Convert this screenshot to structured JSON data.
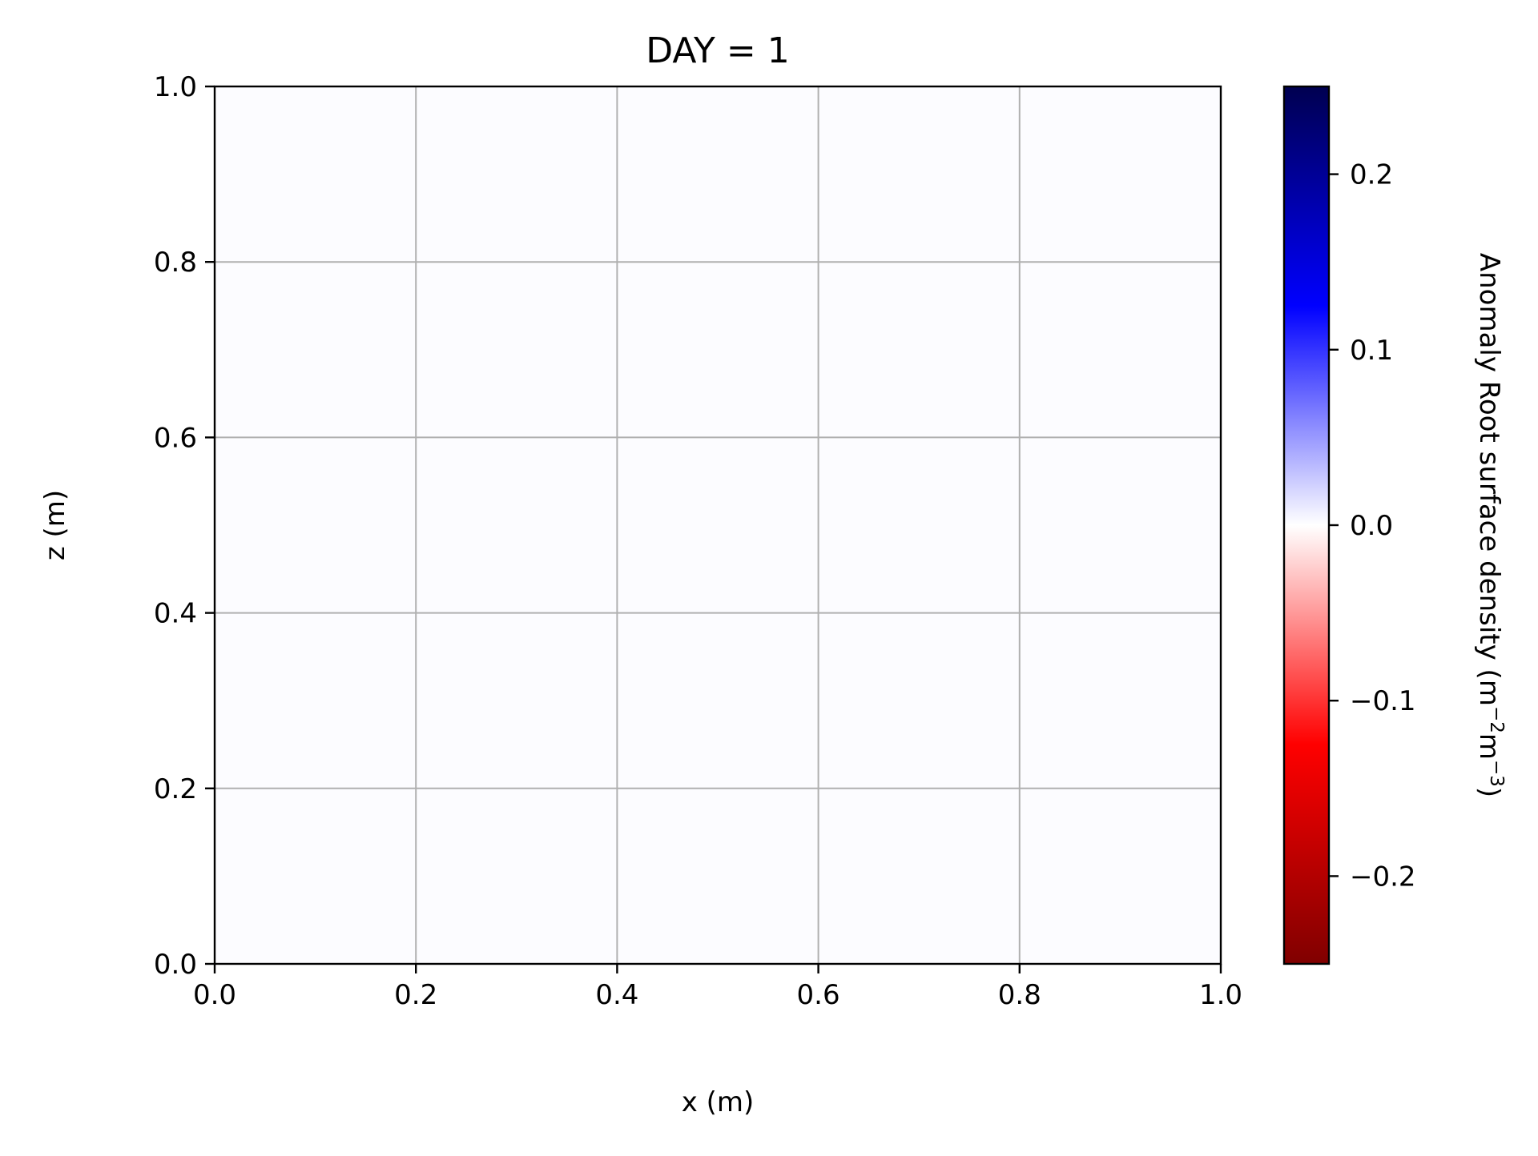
{
  "chart_data": {
    "type": "heatmap",
    "title": "DAY = 1",
    "xlabel": "x (m)",
    "ylabel": "z (m)",
    "xlim": [
      0.0,
      1.0
    ],
    "ylim": [
      0.0,
      1.0
    ],
    "x_ticks": [
      {
        "value": 0.0,
        "label": "0.0"
      },
      {
        "value": 0.2,
        "label": "0.2"
      },
      {
        "value": 0.4,
        "label": "0.4"
      },
      {
        "value": 0.6,
        "label": "0.6"
      },
      {
        "value": 0.8,
        "label": "0.8"
      },
      {
        "value": 1.0,
        "label": "1.0"
      }
    ],
    "y_ticks": [
      {
        "value": 0.0,
        "label": "0.0"
      },
      {
        "value": 0.2,
        "label": "0.2"
      },
      {
        "value": 0.4,
        "label": "0.4"
      },
      {
        "value": 0.6,
        "label": "0.6"
      },
      {
        "value": 0.8,
        "label": "0.8"
      },
      {
        "value": 1.0,
        "label": "1.0"
      }
    ],
    "grid": true,
    "field_value": 0.0,
    "field_color": "#fcfcff",
    "colorbar": {
      "label_main": "Anomaly Root surface density (m",
      "label_exp1": "−2",
      "label_mid": "m",
      "label_exp2": "−3",
      "label_end": ")",
      "range": [
        -0.25,
        0.25
      ],
      "ticks": [
        {
          "value": 0.2,
          "label": "0.2"
        },
        {
          "value": 0.1,
          "label": "0.1"
        },
        {
          "value": 0.0,
          "label": "0.0"
        },
        {
          "value": -0.1,
          "label": "−0.1"
        },
        {
          "value": -0.2,
          "label": "−0.2"
        }
      ],
      "colormap": "seismic_r",
      "gradient_colors": [
        "#800000",
        "#ff0000",
        "#ffffff",
        "#0000ff",
        "#000050"
      ]
    }
  }
}
